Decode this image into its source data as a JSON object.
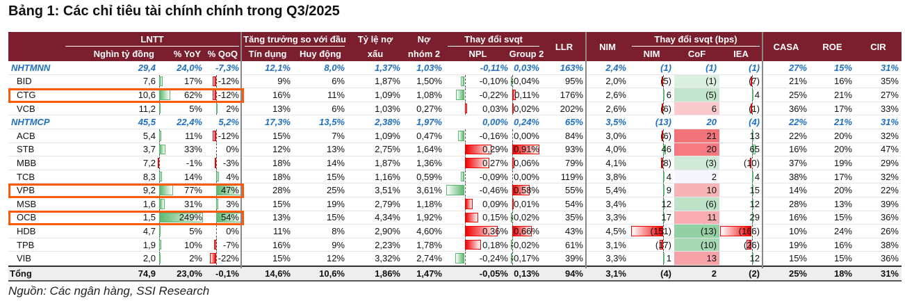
{
  "title": "Bảng 1: Các chỉ tiêu tài chính chính trong Q3/2025",
  "source": "Nguồn: Các ngân hàng, SSI Research",
  "colors": {
    "header_bg": "#7b1e2d",
    "group_text": "#1f6fbf",
    "highlight": "#ff5a0a",
    "bar_green": "#5cb870",
    "bar_red": "#f00000"
  },
  "header": {
    "lntt": "LNTT",
    "growth": "Tăng trưởng so với đầu",
    "npl_ratio_1": "Tỷ lệ nợ",
    "npl_ratio_2": "xấu",
    "g2_1": "Nợ",
    "g2_2": "nhóm 2",
    "chg": "Thay đổi svqt",
    "llr": "LLR",
    "nim": "NIM",
    "chg_bps": "Thay đổi svqt (bps)",
    "casa": "CASA",
    "roe": "ROE",
    "cir": "CIR",
    "profit": "Nghìn tỷ đồng",
    "yoy": "% YoY",
    "qoq": "% QoQ",
    "credit": "Tín dụng",
    "deposit": "Huy động",
    "npl": "NPL",
    "group2": "Group 2",
    "nim_bps": "NIM",
    "cof": "CoF",
    "iea": "IEA"
  },
  "rows": [
    {
      "type": "grp",
      "cells": [
        "NHTMNN",
        "29,4",
        "24,0%",
        "-7,3%",
        "12,1%",
        "8,0%",
        "1,37%",
        "1,03%",
        "-0,11%",
        "0,03%",
        "163%",
        "2,4%",
        "(1)",
        "(1)",
        "(1)",
        "27%",
        "15%",
        "31%"
      ]
    },
    {
      "type": "bank",
      "cells": [
        "BID",
        "7,6",
        "17%",
        "-12%",
        "9%",
        "6%",
        "1,87%",
        "1,50%",
        "-0,10%",
        "-0,04%",
        "95%",
        "2,0%",
        "(5)",
        "(1)",
        "(7)",
        "21%",
        "16%",
        "35%"
      ]
    },
    {
      "type": "bank",
      "highlight": true,
      "cells": [
        "CTG",
        "10,6",
        "62%",
        "-12%",
        "16%",
        "11%",
        "1,09%",
        "1,08%",
        "-0,22%",
        "0,11%",
        "176%",
        "2,6%",
        "6",
        "(5)",
        "4",
        "25%",
        "21%",
        "27%"
      ]
    },
    {
      "type": "bank",
      "cells": [
        "VCB",
        "11,2",
        "5%",
        "2%",
        "13%",
        "6%",
        "1,03%",
        "0,27%",
        "0,03%",
        "0,02%",
        "202%",
        "2,6%",
        "(6)",
        "6",
        "(1)",
        "36%",
        "17%",
        "33%"
      ]
    },
    {
      "type": "grp",
      "cells": [
        "NHTMCP",
        "45,5",
        "22,4%",
        "5,2%",
        "17,3%",
        "13,5%",
        "2,38%",
        "1,97%",
        "0,00%",
        "0,24%",
        "65%",
        "3,5%",
        "(13)",
        "20",
        "(4)",
        "22%",
        "21%",
        "31%"
      ]
    },
    {
      "type": "bank",
      "cells": [
        "ACB",
        "5,4",
        "11%",
        "-12%",
        "15%",
        "7%",
        "1,09%",
        "0,47%",
        "-0,16%",
        "0,00%",
        "84%",
        "3,0%",
        "(6)",
        "21",
        "13",
        "22%",
        "20%",
        "32%"
      ]
    },
    {
      "type": "bank",
      "cells": [
        "STB",
        "3,7",
        "33%",
        "0%",
        "12%",
        "13%",
        "2,75%",
        "1,64%",
        "0,29%",
        "0,91%",
        "93%",
        "4,0%",
        "46",
        "20",
        "65",
        "16%",
        "20%",
        "47%"
      ]
    },
    {
      "type": "bank",
      "cells": [
        "MBB",
        "7,2",
        "-1%",
        "-3%",
        "18%",
        "14%",
        "1,87%",
        "1,36%",
        "0,27%",
        "0,06%",
        "79%",
        "4,1%",
        "(8)",
        "(3)",
        "(10)",
        "37%",
        "19%",
        "29%"
      ]
    },
    {
      "type": "bank",
      "cells": [
        "TCB",
        "8,3",
        "14%",
        "4%",
        "18%",
        "15%",
        "1,16%",
        "0,59%",
        "-0,09%",
        "0,00%",
        "119%",
        "3,8%",
        "4",
        "2",
        "4",
        "38%",
        "17%",
        "32%"
      ]
    },
    {
      "type": "bank",
      "highlight": true,
      "cells": [
        "VPB",
        "9,2",
        "77%",
        "47%",
        "28%",
        "25%",
        "3,51%",
        "3,61%",
        "-0,46%",
        "0,58%",
        "55%",
        "5,4%",
        "9",
        "10",
        "15",
        "14%",
        "20%",
        "22%"
      ]
    },
    {
      "type": "bank",
      "cells": [
        "MSB",
        "1,6",
        "31%",
        "3%",
        "15%",
        "19%",
        "2,79%",
        "1,18%",
        "0,09%",
        "0,01%",
        "54%",
        "3,4%",
        "12",
        "(6)",
        "12",
        "28%",
        "13%",
        "39%"
      ]
    },
    {
      "type": "bank",
      "highlight": true,
      "cells": [
        "OCB",
        "1,5",
        "249%",
        "54%",
        "13%",
        "15%",
        "4,34%",
        "1,92%",
        "0,15%",
        "-0,02%",
        "35%",
        "3,3%",
        "17",
        "11",
        "29",
        "16%",
        "15%",
        "36%"
      ]
    },
    {
      "type": "bank",
      "cells": [
        "HDB",
        "4,7",
        "5%",
        "0%",
        "11%",
        "8%",
        "2,90%",
        "4,60%",
        "0,36%",
        "0,66%",
        "43%",
        "4,5%",
        "(151)",
        "(13)",
        "(166)",
        "10%",
        "24%",
        "26%"
      ]
    },
    {
      "type": "bank",
      "cells": [
        "TPB",
        "1,9",
        "10%",
        "-7%",
        "16%",
        "9%",
        "2,23%",
        "1,78%",
        "0,18%",
        "-0,02%",
        "61%",
        "3,1%",
        "(17)",
        "(10)",
        "(26)",
        "19%",
        "16%",
        "38%"
      ]
    },
    {
      "type": "bank",
      "cells": [
        "VIB",
        "2,0",
        "2%",
        "-22%",
        "15%",
        "12%",
        "3,32%",
        "2,74%",
        "-0,24%",
        "-0,17%",
        "39%",
        "3,3%",
        "1",
        "13",
        "12",
        "15%",
        "15%",
        "36%"
      ]
    },
    {
      "type": "tot",
      "cells": [
        "Tổng",
        "74,9",
        "23,0%",
        "-0,1%",
        "14,6%",
        "10,6%",
        "1,86%",
        "1,47%",
        "-0,05%",
        "0,13%",
        "94%",
        "3,1%",
        "(4)",
        "2",
        "(2)",
        "25%",
        "18%",
        "31%"
      ]
    }
  ]
}
